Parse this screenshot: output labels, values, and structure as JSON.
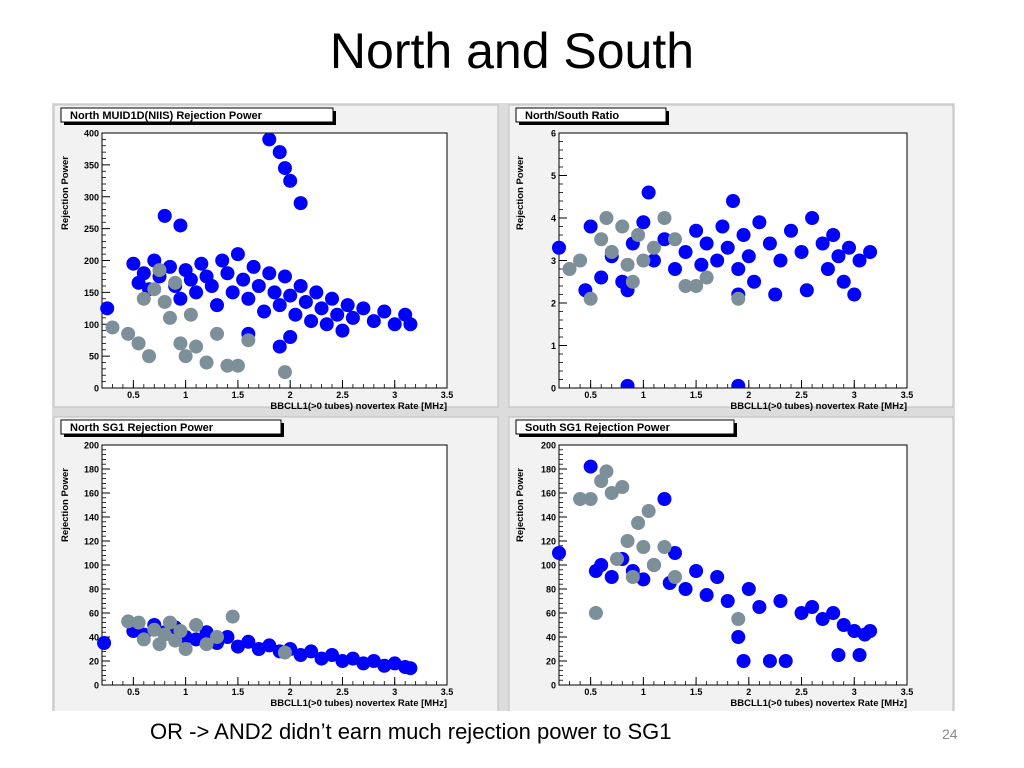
{
  "slide": {
    "title": "North and South",
    "caption": "OR -> AND2 didn’t earn much rejection power to SG1",
    "slide_number": "24"
  },
  "colors": {
    "blue": "#0000ff",
    "gray": "#7d8f99",
    "frame_bg": "#f2f2f2",
    "outer_bg": "#dcdcdc"
  },
  "chart_data": [
    {
      "type": "scatter",
      "title": "North MUID1D(NIIS) Rejection Power",
      "xlabel": "BBCLL1(>0 tubes) novertex Rate [MHz]",
      "ylabel": "Rejection Power",
      "xlim": [
        0.2,
        3.5
      ],
      "ylim": [
        0,
        400
      ],
      "xticks": [
        "0.5",
        "1",
        "1.5",
        "2",
        "2.5",
        "3",
        "3.5"
      ],
      "yticks": [
        "0",
        "50",
        "100",
        "150",
        "200",
        "250",
        "300",
        "350",
        "400"
      ],
      "series": [
        {
          "color": "blue",
          "points": [
            [
              0.25,
              125
            ],
            [
              0.5,
              195
            ],
            [
              0.55,
              165
            ],
            [
              0.6,
              180
            ],
            [
              0.65,
              155
            ],
            [
              0.7,
              200
            ],
            [
              0.75,
              175
            ],
            [
              0.8,
              270
            ],
            [
              0.85,
              190
            ],
            [
              0.9,
              160
            ],
            [
              0.95,
              140
            ],
            [
              1.0,
              185
            ],
            [
              1.05,
              170
            ],
            [
              1.1,
              150
            ],
            [
              1.15,
              195
            ],
            [
              1.2,
              175
            ],
            [
              1.25,
              160
            ],
            [
              1.3,
              130
            ],
            [
              1.35,
              200
            ],
            [
              1.4,
              180
            ],
            [
              1.45,
              150
            ],
            [
              1.5,
              210
            ],
            [
              1.55,
              170
            ],
            [
              1.6,
              140
            ],
            [
              1.65,
              190
            ],
            [
              1.7,
              160
            ],
            [
              1.75,
              120
            ],
            [
              1.8,
              180
            ],
            [
              1.85,
              150
            ],
            [
              1.9,
              130
            ],
            [
              1.95,
              175
            ],
            [
              2.0,
              145
            ],
            [
              2.05,
              115
            ],
            [
              2.1,
              160
            ],
            [
              2.15,
              135
            ],
            [
              2.2,
              105
            ],
            [
              2.25,
              150
            ],
            [
              2.3,
              125
            ],
            [
              2.35,
              100
            ],
            [
              2.4,
              140
            ],
            [
              2.45,
              115
            ],
            [
              2.5,
              90
            ],
            [
              2.55,
              130
            ],
            [
              2.6,
              110
            ],
            [
              2.7,
              125
            ],
            [
              2.8,
              105
            ],
            [
              2.9,
              120
            ],
            [
              3.0,
              100
            ],
            [
              3.1,
              115
            ],
            [
              3.15,
              100
            ],
            [
              1.8,
              390
            ],
            [
              1.9,
              370
            ],
            [
              1.95,
              345
            ],
            [
              2.0,
              325
            ],
            [
              2.1,
              290
            ],
            [
              0.95,
              255
            ],
            [
              1.6,
              85
            ],
            [
              1.9,
              65
            ],
            [
              2.0,
              80
            ]
          ]
        },
        {
          "color": "gray",
          "points": [
            [
              0.3,
              95
            ],
            [
              0.45,
              85
            ],
            [
              0.55,
              70
            ],
            [
              0.6,
              140
            ],
            [
              0.65,
              50
            ],
            [
              0.7,
              155
            ],
            [
              0.75,
              185
            ],
            [
              0.8,
              135
            ],
            [
              0.85,
              110
            ],
            [
              0.9,
              165
            ],
            [
              0.95,
              70
            ],
            [
              1.0,
              50
            ],
            [
              1.05,
              115
            ],
            [
              1.1,
              65
            ],
            [
              1.2,
              40
            ],
            [
              1.3,
              85
            ],
            [
              1.4,
              35
            ],
            [
              1.5,
              35
            ],
            [
              1.6,
              75
            ],
            [
              1.95,
              25
            ]
          ]
        }
      ]
    },
    {
      "type": "scatter",
      "title": "North/South Ratio",
      "xlabel": "BBCLL1(>0 tubes) novertex Rate [MHz]",
      "ylabel": "Rejection Power",
      "xlim": [
        0.2,
        3.5
      ],
      "ylim": [
        0,
        6
      ],
      "xticks": [
        "0.5",
        "1",
        "1.5",
        "2",
        "2.5",
        "3",
        "3.5"
      ],
      "yticks": [
        "0",
        "1",
        "2",
        "3",
        "4",
        "5",
        "6"
      ],
      "series": [
        {
          "color": "blue",
          "points": [
            [
              0.2,
              3.3
            ],
            [
              0.45,
              2.3
            ],
            [
              0.5,
              3.8
            ],
            [
              0.6,
              2.6
            ],
            [
              0.7,
              3.1
            ],
            [
              0.8,
              2.5
            ],
            [
              0.9,
              3.4
            ],
            [
              1.0,
              3.9
            ],
            [
              1.05,
              4.6
            ],
            [
              1.1,
              3.0
            ],
            [
              1.2,
              3.5
            ],
            [
              1.3,
              2.8
            ],
            [
              1.4,
              3.2
            ],
            [
              1.5,
              3.7
            ],
            [
              1.55,
              2.9
            ],
            [
              1.6,
              3.4
            ],
            [
              1.7,
              3.0
            ],
            [
              1.75,
              3.8
            ],
            [
              1.8,
              3.3
            ],
            [
              1.85,
              4.4
            ],
            [
              1.9,
              2.8
            ],
            [
              1.95,
              3.6
            ],
            [
              2.0,
              3.1
            ],
            [
              2.05,
              2.5
            ],
            [
              2.1,
              3.9
            ],
            [
              2.2,
              3.4
            ],
            [
              2.25,
              2.2
            ],
            [
              2.3,
              3.0
            ],
            [
              2.4,
              3.7
            ],
            [
              2.5,
              3.2
            ],
            [
              2.55,
              2.3
            ],
            [
              2.6,
              4.0
            ],
            [
              2.7,
              3.4
            ],
            [
              2.75,
              2.8
            ],
            [
              2.8,
              3.6
            ],
            [
              2.85,
              3.1
            ],
            [
              2.9,
              2.5
            ],
            [
              2.95,
              3.3
            ],
            [
              3.0,
              2.2
            ],
            [
              3.05,
              3.0
            ],
            [
              3.15,
              3.2
            ],
            [
              0.85,
              0.05
            ],
            [
              1.9,
              0.05
            ],
            [
              0.85,
              2.3
            ],
            [
              1.9,
              2.2
            ]
          ]
        },
        {
          "color": "gray",
          "points": [
            [
              0.3,
              2.8
            ],
            [
              0.4,
              3.0
            ],
            [
              0.5,
              2.1
            ],
            [
              0.6,
              3.5
            ],
            [
              0.65,
              4.0
            ],
            [
              0.7,
              3.2
            ],
            [
              0.8,
              3.8
            ],
            [
              0.85,
              2.9
            ],
            [
              0.9,
              2.5
            ],
            [
              0.95,
              3.6
            ],
            [
              1.0,
              3.0
            ],
            [
              1.1,
              3.3
            ],
            [
              1.2,
              4.0
            ],
            [
              1.3,
              3.5
            ],
            [
              1.4,
              2.4
            ],
            [
              1.5,
              2.4
            ],
            [
              1.6,
              2.6
            ],
            [
              1.9,
              2.1
            ]
          ]
        }
      ]
    },
    {
      "type": "scatter",
      "title": "North SG1 Rejection Power",
      "xlabel": "BBCLL1(>0 tubes) novertex Rate [MHz]",
      "ylabel": "Rejection Power",
      "xlim": [
        0.2,
        3.5
      ],
      "ylim": [
        0,
        200
      ],
      "xticks": [
        "0.5",
        "1",
        "1.5",
        "2",
        "2.5",
        "3",
        "3.5"
      ],
      "yticks": [
        "0",
        "20",
        "40",
        "60",
        "80",
        "100",
        "120",
        "140",
        "160",
        "180",
        "200"
      ],
      "series": [
        {
          "color": "blue",
          "points": [
            [
              0.22,
              35
            ],
            [
              0.5,
              45
            ],
            [
              0.6,
              42
            ],
            [
              0.7,
              50
            ],
            [
              0.8,
              44
            ],
            [
              0.9,
              48
            ],
            [
              1.0,
              40
            ],
            [
              1.1,
              38
            ],
            [
              1.2,
              44
            ],
            [
              1.3,
              35
            ],
            [
              1.4,
              40
            ],
            [
              1.5,
              32
            ],
            [
              1.6,
              36
            ],
            [
              1.7,
              30
            ],
            [
              1.8,
              33
            ],
            [
              1.9,
              28
            ],
            [
              2.0,
              30
            ],
            [
              2.1,
              25
            ],
            [
              2.2,
              28
            ],
            [
              2.3,
              22
            ],
            [
              2.4,
              25
            ],
            [
              2.5,
              20
            ],
            [
              2.6,
              22
            ],
            [
              2.7,
              18
            ],
            [
              2.8,
              20
            ],
            [
              2.9,
              16
            ],
            [
              3.0,
              18
            ],
            [
              3.1,
              15
            ],
            [
              3.15,
              14
            ]
          ]
        },
        {
          "color": "gray",
          "points": [
            [
              0.45,
              53
            ],
            [
              0.55,
              52
            ],
            [
              0.6,
              38
            ],
            [
              0.7,
              46
            ],
            [
              0.75,
              34
            ],
            [
              0.8,
              42
            ],
            [
              0.85,
              52
            ],
            [
              0.9,
              37
            ],
            [
              0.95,
              45
            ],
            [
              1.0,
              30
            ],
            [
              1.1,
              50
            ],
            [
              1.2,
              34
            ],
            [
              1.3,
              40
            ],
            [
              1.45,
              57
            ],
            [
              1.95,
              27
            ]
          ]
        }
      ]
    },
    {
      "type": "scatter",
      "title": "South SG1 Rejection Power",
      "xlabel": "BBCLL1(>0 tubes) novertex Rate [MHz]",
      "ylabel": "Rejection Power",
      "xlim": [
        0.2,
        3.5
      ],
      "ylim": [
        0,
        200
      ],
      "xticks": [
        "0.5",
        "1",
        "1.5",
        "2",
        "2.5",
        "3",
        "3.5"
      ],
      "yticks": [
        "0",
        "20",
        "40",
        "60",
        "80",
        "100",
        "120",
        "140",
        "160",
        "180",
        "200"
      ],
      "series": [
        {
          "color": "blue",
          "points": [
            [
              0.2,
              110
            ],
            [
              0.5,
              182
            ],
            [
              0.55,
              95
            ],
            [
              0.6,
              100
            ],
            [
              0.7,
              90
            ],
            [
              0.8,
              105
            ],
            [
              0.9,
              95
            ],
            [
              1.0,
              88
            ],
            [
              1.1,
              100
            ],
            [
              1.2,
              155
            ],
            [
              1.25,
              85
            ],
            [
              1.3,
              110
            ],
            [
              1.4,
              80
            ],
            [
              1.5,
              95
            ],
            [
              1.6,
              75
            ],
            [
              1.7,
              90
            ],
            [
              1.8,
              70
            ],
            [
              1.9,
              40
            ],
            [
              1.95,
              20
            ],
            [
              2.0,
              80
            ],
            [
              2.1,
              65
            ],
            [
              2.2,
              20
            ],
            [
              2.3,
              70
            ],
            [
              2.35,
              20
            ],
            [
              2.5,
              60
            ],
            [
              2.6,
              65
            ],
            [
              2.7,
              55
            ],
            [
              2.8,
              60
            ],
            [
              2.85,
              25
            ],
            [
              2.9,
              50
            ],
            [
              3.0,
              45
            ],
            [
              3.05,
              25
            ],
            [
              3.1,
              42
            ],
            [
              3.15,
              45
            ]
          ]
        },
        {
          "color": "gray",
          "points": [
            [
              0.4,
              155
            ],
            [
              0.5,
              155
            ],
            [
              0.55,
              60
            ],
            [
              0.6,
              170
            ],
            [
              0.65,
              178
            ],
            [
              0.7,
              160
            ],
            [
              0.75,
              105
            ],
            [
              0.8,
              165
            ],
            [
              0.85,
              120
            ],
            [
              0.9,
              90
            ],
            [
              0.95,
              135
            ],
            [
              1.0,
              115
            ],
            [
              1.05,
              145
            ],
            [
              1.1,
              100
            ],
            [
              1.2,
              115
            ],
            [
              1.3,
              90
            ],
            [
              1.9,
              55
            ]
          ]
        }
      ]
    }
  ]
}
